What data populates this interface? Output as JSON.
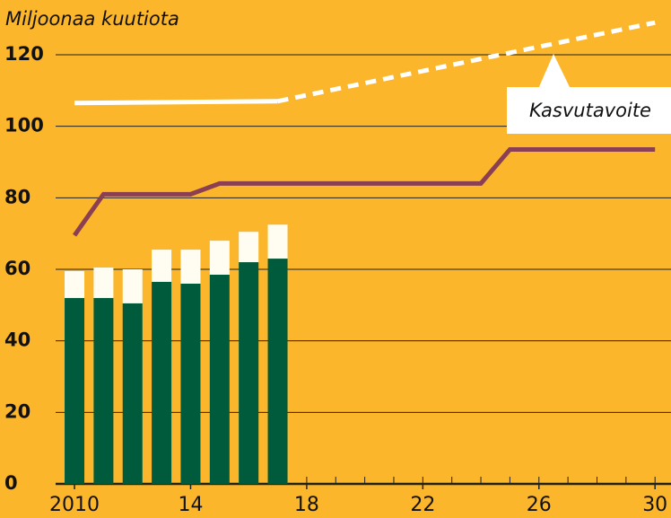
{
  "chart_data": {
    "type": "bar",
    "title": "Miljoonaa kuutiota",
    "x": [
      2010,
      2011,
      2012,
      2013,
      2014,
      2015,
      2016,
      2017
    ],
    "series": [
      {
        "color": "#005a3c",
        "values": [
          52,
          52,
          50.5,
          56.5,
          56,
          58.5,
          62,
          63
        ]
      },
      {
        "color": "#fffdf2",
        "values": [
          7.5,
          8.5,
          9.5,
          9,
          9.5,
          9.5,
          8.5,
          9.5
        ]
      }
    ],
    "lines": [
      {
        "color": "#8b3f52",
        "x": [
          2010,
          2011,
          2014,
          2015,
          2024,
          2025,
          2030
        ],
        "values": [
          69.5,
          81,
          81,
          84,
          84,
          93.5,
          93.5
        ]
      },
      {
        "color": "#ffffff",
        "x": [
          2010,
          2017
        ],
        "values": [
          106.5,
          107
        ]
      },
      {
        "color": "#ffffff",
        "dashed": true,
        "x": [
          2017,
          2030
        ],
        "values": [
          107,
          129
        ]
      }
    ],
    "annotation": "Kasvutavoite",
    "xlim": [
      2009.35,
      2030.55
    ],
    "xticks": [
      2010,
      {
        "value": 2014,
        "label": "14"
      },
      {
        "value": 2018,
        "label": "18"
      },
      {
        "value": 2022,
        "label": "22"
      },
      {
        "value": 2026,
        "label": "26"
      },
      {
        "value": 2030,
        "label": "30"
      }
    ],
    "xminorticks": [
      2010,
      2011,
      2012,
      2013,
      2014,
      2015,
      2016,
      2017,
      2018,
      2019,
      2020,
      2021,
      2022,
      2023,
      2024,
      2025,
      2026,
      2027,
      2028,
      2029,
      2030
    ],
    "ylim": [
      0,
      120
    ],
    "yticks": [
      0,
      20,
      40,
      60,
      80,
      100,
      120
    ],
    "grid": true
  }
}
